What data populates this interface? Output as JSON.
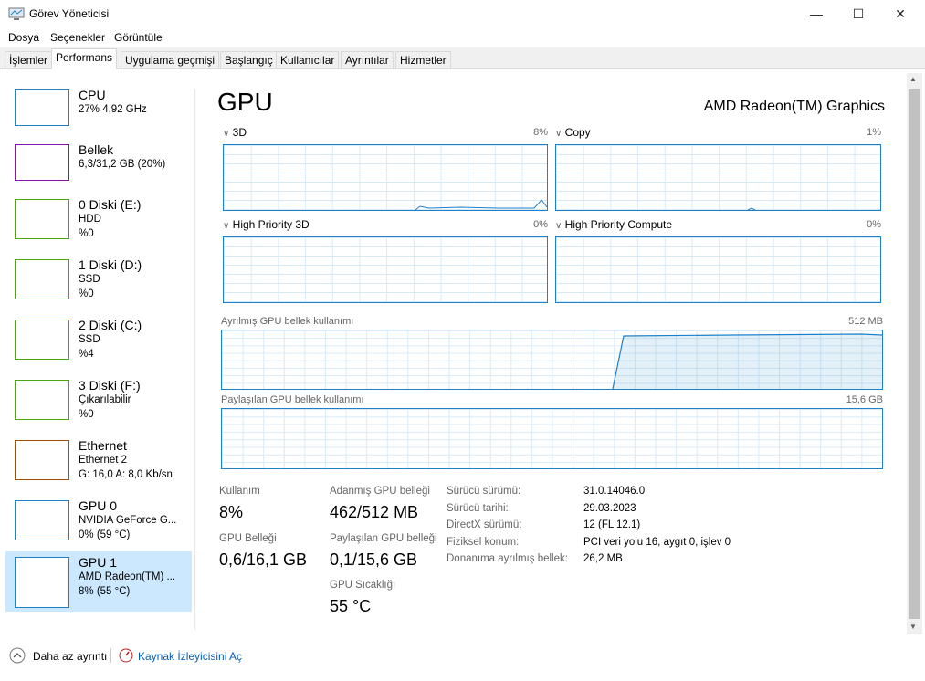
{
  "window": {
    "title": "Görev Yöneticisi",
    "icon": "task-manager-icon"
  },
  "menu": [
    "Dosya",
    "Seçenekler",
    "Görüntüle"
  ],
  "tabs": [
    "İşlemler",
    "Performans",
    "Uygulama geçmişi",
    "Başlangıç",
    "Kullanıcılar",
    "Ayrıntılar",
    "Hizmetler"
  ],
  "active_tab": "Performans",
  "sidebar": [
    {
      "name": "CPU",
      "l1": "27%  4,92 GHz",
      "l2": "",
      "color": "#1e80c8"
    },
    {
      "name": "Bellek",
      "l1": "6,3/31,2 GB (20%)",
      "l2": "",
      "color": "#8b12ae"
    },
    {
      "name": "0 Diski (E:)",
      "l1": "HDD",
      "l2": "%0",
      "color": "#4da60c"
    },
    {
      "name": "1 Diski (D:)",
      "l1": "SSD",
      "l2": "%0",
      "color": "#4da60c"
    },
    {
      "name": "2 Diski (C:)",
      "l1": "SSD",
      "l2": "%4",
      "color": "#4da60c"
    },
    {
      "name": "3 Diski (F:)",
      "l1": "Çıkarılabilir",
      "l2": "%0",
      "color": "#4da60c"
    },
    {
      "name": "Ethernet",
      "l1": "Ethernet 2",
      "l2": "G: 16,0  A: 8,0 Kb/sn",
      "color": "#a74f01"
    },
    {
      "name": "GPU 0",
      "l1": "NVIDIA GeForce G...",
      "l2": "0% (59 °C)",
      "color": "#1e80c8"
    },
    {
      "name": "GPU 1",
      "l1": "AMD Radeon(TM) ...",
      "l2": "8% (55 °C)",
      "color": "#1e80c8",
      "selected": true
    }
  ],
  "main": {
    "title": "GPU",
    "device": "AMD Radeon(TM) Graphics",
    "engines": [
      {
        "label": "3D",
        "pct": "8%"
      },
      {
        "label": "Copy",
        "pct": "1%"
      },
      {
        "label": "High Priority 3D",
        "pct": "0%"
      },
      {
        "label": "High Priority Compute",
        "pct": "0%"
      }
    ],
    "dedicated": {
      "label": "Ayrılmış GPU bellek kullanımı",
      "max": "512 MB"
    },
    "shared": {
      "label": "Paylaşılan GPU bellek kullanımı",
      "max": "15,6 GB"
    },
    "stats": {
      "usage_l": "Kullanım",
      "usage_v": "8%",
      "gpumem_l": "GPU Belleği",
      "gpumem_v": "0,6/16,1 GB",
      "ded_l": "Adanmış GPU belleği",
      "ded_v": "462/512 MB",
      "sh_l": "Paylaşılan GPU belleği",
      "sh_v": "0,1/15,6 GB",
      "temp_l": "GPU Sıcaklığı",
      "temp_v": "55 °C"
    },
    "info": [
      {
        "k": "Sürücü sürümü:",
        "v": "31.0.14046.0"
      },
      {
        "k": "Sürücü tarihi:",
        "v": "29.03.2023"
      },
      {
        "k": "DirectX sürümü:",
        "v": "12 (FL 12.1)"
      },
      {
        "k": "Fiziksel konum:",
        "v": "PCI veri yolu 16, aygıt 0, işlev 0"
      },
      {
        "k": "Donanıma ayrılmış bellek:",
        "v": "26,2 MB"
      }
    ]
  },
  "footer": {
    "less": "Daha az ayrıntı",
    "monitor": "Kaynak İzleyicisini Aç"
  }
}
